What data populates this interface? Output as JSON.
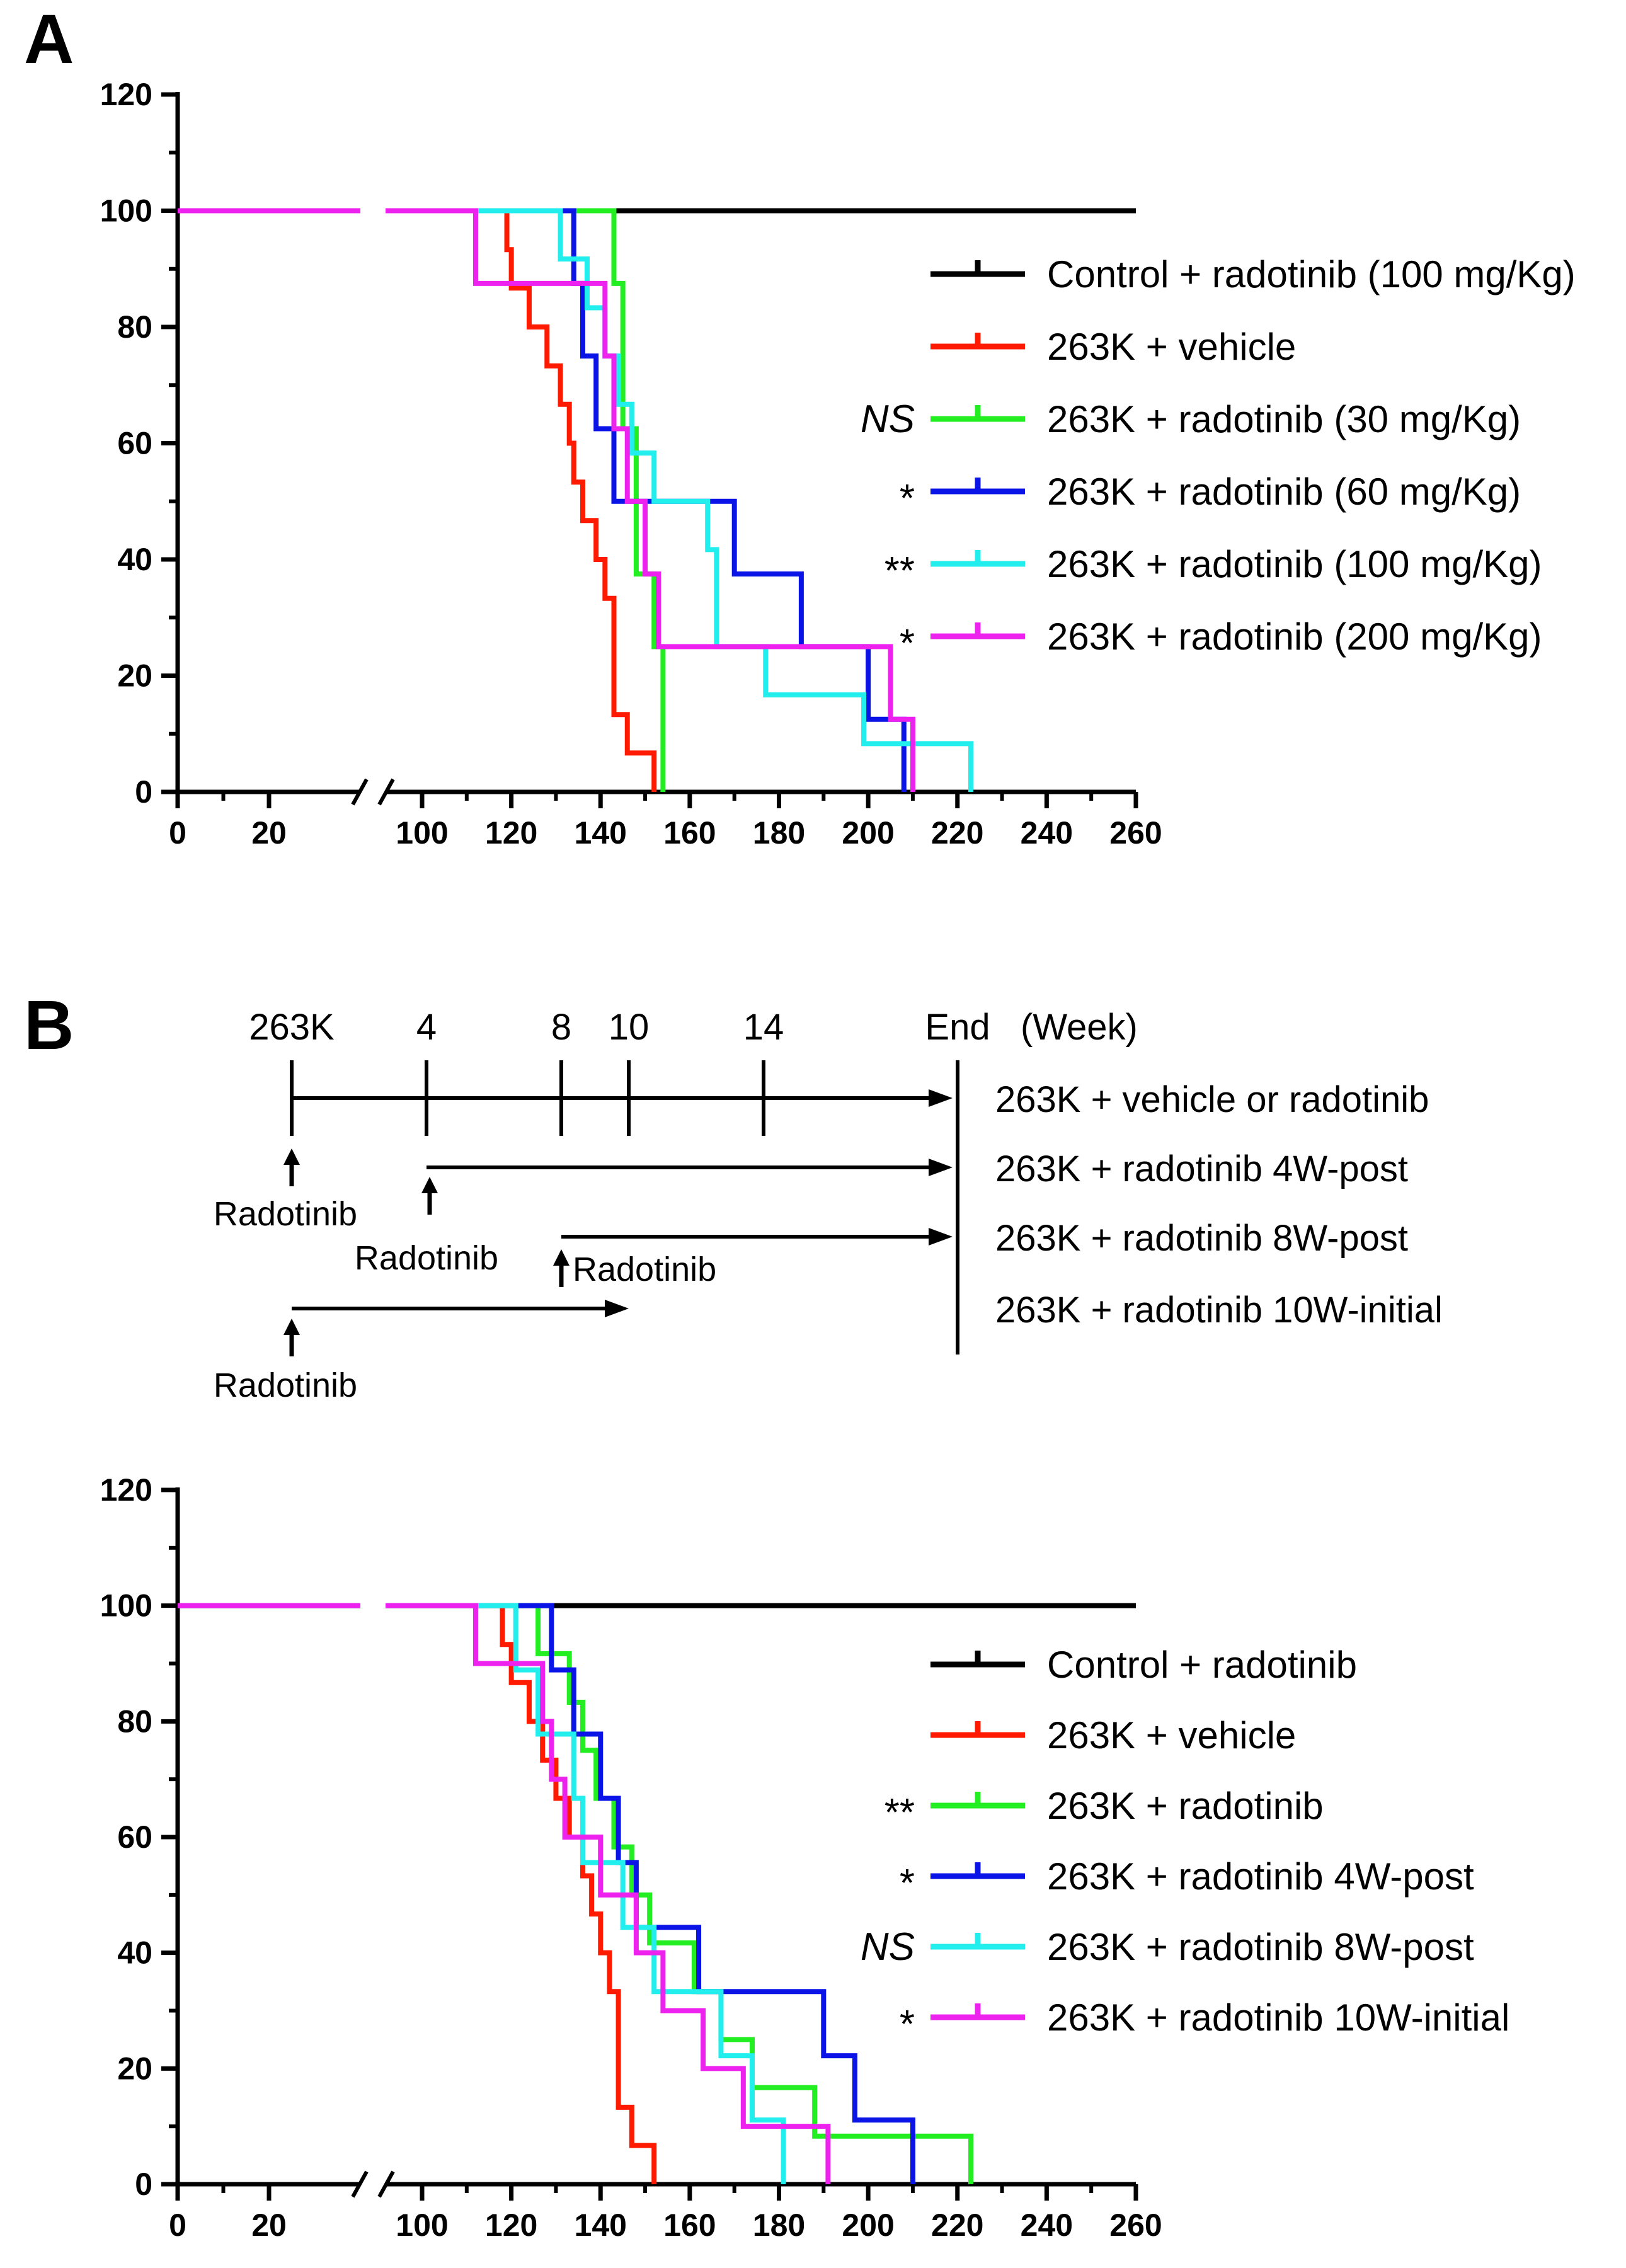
{
  "panels": {
    "a_label": "A",
    "b_label": "B"
  },
  "timeline": {
    "ticks": [
      {
        "label": "263K",
        "week": 0
      },
      {
        "label": "4",
        "week": 4
      },
      {
        "label": "8",
        "week": 8
      },
      {
        "label": "10",
        "week": 10
      },
      {
        "label": "14",
        "week": 14
      }
    ],
    "end_label": "End",
    "unit_label": "(Week)",
    "drug_label": "Radotinib",
    "rows": [
      {
        "label": "263K + vehicle or radotinib",
        "start_week": 0,
        "end": "End"
      },
      {
        "label": "263K + radotinib 4W-post",
        "start_week": 4,
        "end": "End"
      },
      {
        "label": "263K + radotinib 8W-post",
        "start_week": 8,
        "end": "End"
      },
      {
        "label": "263K + radotinib 10W-initial",
        "start_week": 0,
        "end_week": 10
      }
    ]
  },
  "chart_data": [
    {
      "type": "line",
      "step": true,
      "panel": "A",
      "xlabel": "",
      "ylabel": "",
      "xlim": [
        0,
        260
      ],
      "ylim": [
        0,
        120
      ],
      "x_axis_break": [
        30,
        100
      ],
      "xticks": [
        "0",
        "20",
        "100",
        "120",
        "140",
        "160",
        "180",
        "200",
        "220",
        "240",
        "260"
      ],
      "yticks": [
        "0",
        "20",
        "40",
        "60",
        "80",
        "100",
        "120"
      ],
      "legend_position": "right",
      "series": [
        {
          "name": "Control + radotinib (100 mg/Kg)",
          "significance": "",
          "color": "#000000",
          "x": [
            0,
            260
          ],
          "y": [
            100,
            100
          ]
        },
        {
          "name": "263K + vehicle",
          "significance": "",
          "color": "#ff1a00",
          "x": [
            0,
            118,
            119,
            120,
            124,
            128,
            131,
            133,
            134,
            136,
            139,
            141,
            143,
            146,
            152
          ],
          "y": [
            100,
            100,
            93.3,
            86.7,
            80,
            73.3,
            66.7,
            60,
            53.3,
            46.7,
            40,
            33.3,
            13.3,
            6.7,
            0
          ]
        },
        {
          "name": "263K + radotinib (30 mg/Kg)",
          "significance": "NS",
          "color": "#22ee22",
          "x": [
            0,
            142,
            143,
            145,
            148,
            152,
            154
          ],
          "y": [
            100,
            100,
            87.5,
            62.5,
            37.5,
            25,
            0
          ]
        },
        {
          "name": "263K + radotinib (60 mg/Kg)",
          "significance": "*",
          "color": "#0a14e6",
          "x": [
            0,
            134,
            136,
            139,
            143,
            151,
            170,
            185,
            200,
            208
          ],
          "y": [
            100,
            87.5,
            75,
            62.5,
            50,
            50,
            37.5,
            25,
            12.5,
            0
          ]
        },
        {
          "name": "263K + radotinib (100 mg/Kg)",
          "significance": "**",
          "color": "#22eeee",
          "x": [
            0,
            124,
            131,
            137,
            141,
            144,
            147,
            152,
            164,
            166,
            177,
            199,
            211,
            223
          ],
          "y": [
            100,
            100,
            91.7,
            83.3,
            75,
            66.7,
            58.3,
            50,
            41.7,
            25,
            16.7,
            8.3,
            8.3,
            0
          ]
        },
        {
          "name": "263K + radotinib (200 mg/Kg)",
          "significance": "*",
          "color": "#ee22ee",
          "x": [
            0,
            112,
            138,
            141,
            143,
            146,
            150,
            153,
            205,
            208,
            210
          ],
          "y": [
            100,
            87.5,
            87.5,
            75,
            62.5,
            50,
            37.5,
            25,
            12.5,
            12.5,
            0
          ]
        }
      ]
    },
    {
      "type": "line",
      "step": true,
      "panel": "B",
      "xlabel": "",
      "ylabel": "",
      "xlim": [
        0,
        260
      ],
      "ylim": [
        0,
        120
      ],
      "x_axis_break": [
        30,
        100
      ],
      "xticks": [
        "0",
        "20",
        "100",
        "120",
        "140",
        "160",
        "180",
        "200",
        "220",
        "240",
        "260"
      ],
      "yticks": [
        "0",
        "20",
        "40",
        "60",
        "80",
        "100",
        "120"
      ],
      "legend_position": "right",
      "series": [
        {
          "name": "Control + radotinib",
          "significance": "",
          "color": "#000000",
          "x": [
            0,
            260
          ],
          "y": [
            100,
            100
          ]
        },
        {
          "name": "263K + vehicle",
          "significance": "",
          "color": "#ff1a00",
          "x": [
            0,
            118,
            120,
            124,
            127,
            130,
            133,
            136,
            138,
            140,
            142,
            144,
            147,
            152
          ],
          "y": [
            100,
            93.3,
            86.7,
            80,
            73.3,
            66.7,
            60,
            53.3,
            46.7,
            40,
            33.3,
            13.3,
            6.7,
            0
          ]
        },
        {
          "name": "263K + radotinib",
          "significance": "**",
          "color": "#22ee22",
          "x": [
            0,
            124,
            126,
            133,
            136,
            139,
            143,
            147,
            151,
            161,
            167,
            174,
            188,
            193,
            223
          ],
          "y": [
            100,
            100,
            91.7,
            83.3,
            75,
            66.7,
            58.3,
            50,
            41.7,
            33.3,
            25,
            16.7,
            8.3,
            8.3,
            0
          ]
        },
        {
          "name": "263K + radotinib 4W-post",
          "significance": "*",
          "color": "#0a14e6",
          "x": [
            0,
            126,
            129,
            134,
            140,
            144,
            148,
            162,
            170,
            190,
            197,
            210
          ],
          "y": [
            100,
            100,
            88.9,
            77.8,
            66.7,
            55.6,
            44.4,
            33.3,
            33.3,
            22.2,
            11.1,
            0
          ]
        },
        {
          "name": "263K + radotinib 8W-post",
          "significance": "NS",
          "color": "#22eeee",
          "x": [
            0,
            114,
            121,
            126,
            134,
            136,
            140,
            145,
            152,
            162,
            167,
            174,
            177,
            181
          ],
          "y": [
            100,
            100,
            88.9,
            77.8,
            66.7,
            55.6,
            55.6,
            44.4,
            33.3,
            33.3,
            22.2,
            11.1,
            11.1,
            0
          ]
        },
        {
          "name": "263K + radotinib 10W-initial",
          "significance": "*",
          "color": "#ee22ee",
          "x": [
            0,
            112,
            127,
            129,
            132,
            136,
            140,
            148,
            154,
            163,
            168,
            172,
            181,
            191
          ],
          "y": [
            100,
            90,
            80,
            70,
            60,
            60,
            50,
            40,
            30,
            20,
            20,
            10,
            10,
            0
          ]
        }
      ]
    }
  ]
}
